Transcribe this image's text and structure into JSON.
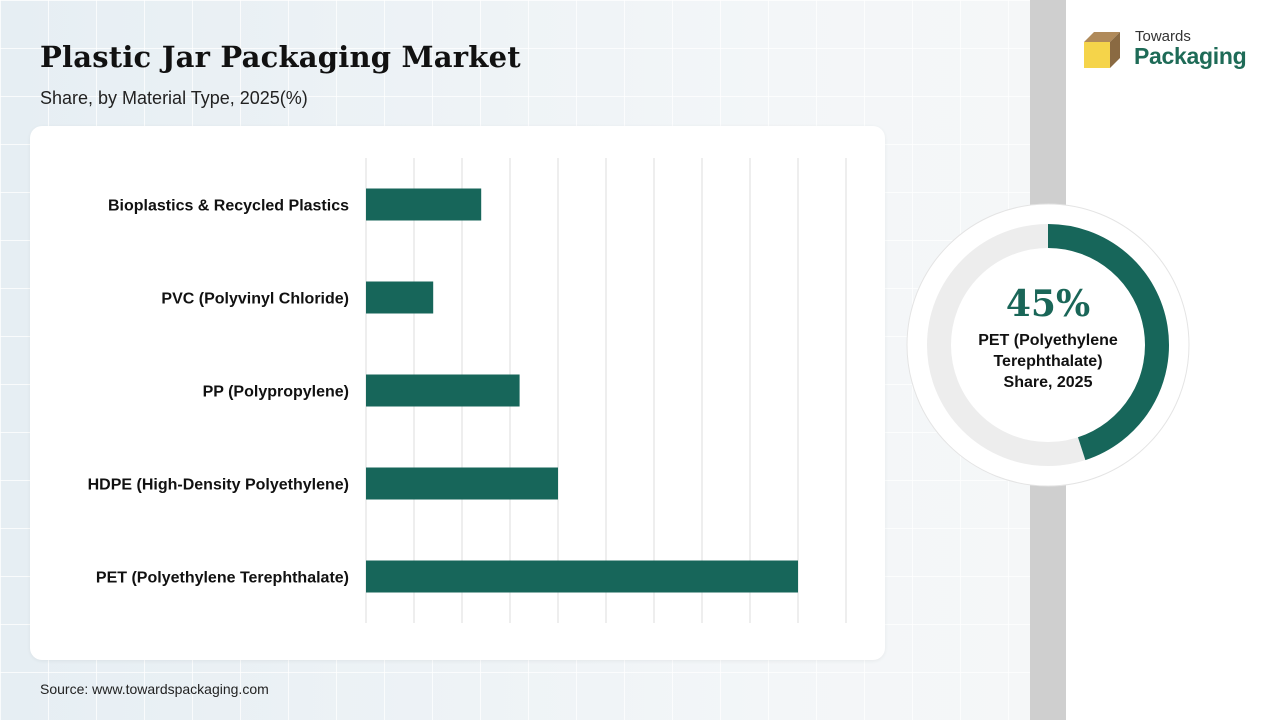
{
  "header": {
    "title": "Plastic Jar Packaging Market",
    "subtitle": "Share, by Material Type, 2025(%)"
  },
  "logo": {
    "top": "Towards",
    "bottom": "Packaging",
    "icon": "box-icon"
  },
  "colors": {
    "bar": "#17665a",
    "donut_fill": "#17665a",
    "donut_track": "#ededed",
    "logo_green": "#1e6b57",
    "logo_yellow": "#f5d44a",
    "logo_brown": "#b08a5a"
  },
  "chart_data": [
    {
      "type": "bar",
      "orientation": "horizontal",
      "categories": [
        "Bioplastics & Recycled Plastics",
        "PVC (Polyvinyl Chloride)",
        "PP (Polypropylene)",
        "HDPE (High-Density Polyethylene)",
        "PET (Polyethylene Terephthalate)"
      ],
      "values": [
        12,
        7,
        16,
        20,
        45
      ],
      "xlim": [
        0,
        50
      ],
      "grid": true,
      "title": "",
      "xlabel": "",
      "ylabel": ""
    },
    {
      "type": "pie",
      "variant": "donut",
      "value": 45,
      "value_text": "45%",
      "label": "PET (Polyethylene\nTerephthalate)\nShare, 2025"
    }
  ],
  "footer": {
    "source": "Source: www.towardspackaging.com"
  }
}
